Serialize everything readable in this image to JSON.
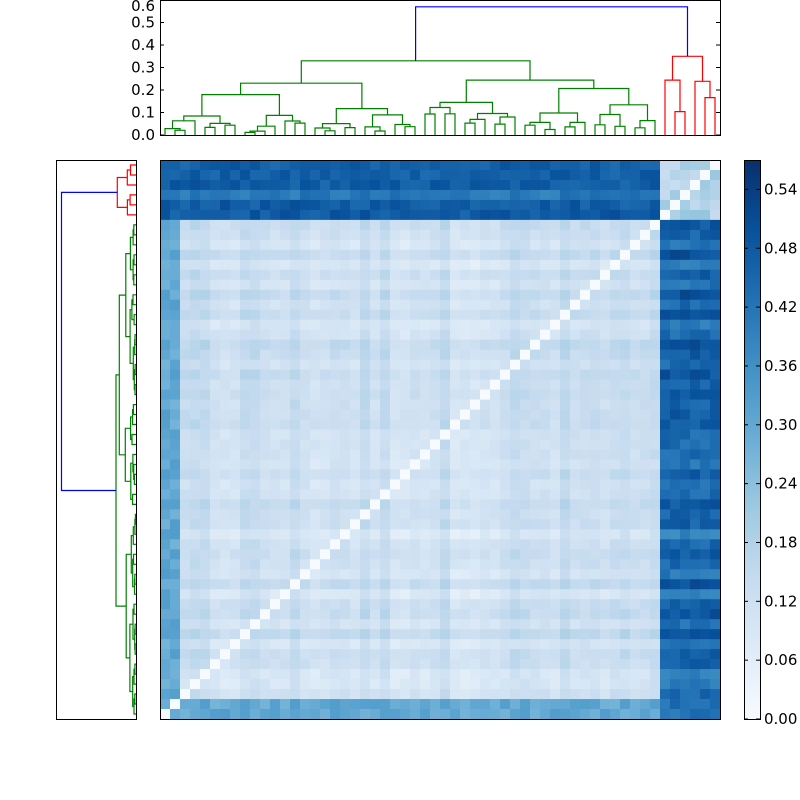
{
  "chart_data": [
    {
      "type": "dendrogram",
      "orientation": "top",
      "n_leaves": 56,
      "ylim": [
        0,
        0.6
      ],
      "yticks": [
        "0.0",
        "0.1",
        "0.2",
        "0.3",
        "0.4",
        "0.5",
        "0.6"
      ],
      "clusters": [
        {
          "color": "#008000",
          "leaves": 50,
          "height": 0.33
        },
        {
          "color": "#ff0000",
          "leaves": 6,
          "height": 0.35
        }
      ],
      "root": {
        "color": "#0000ff",
        "height": 0.57
      }
    },
    {
      "type": "dendrogram",
      "orientation": "left",
      "n_leaves": 56,
      "clusters": [
        {
          "color": "#ff0000",
          "leaves": 6
        },
        {
          "color": "#008000",
          "leaves": 50
        }
      ],
      "root": {
        "color": "#0000ff"
      }
    },
    {
      "type": "heatmap",
      "n_rows": 56,
      "n_cols": 56,
      "colormap": "Blues",
      "vmin": 0.0,
      "vmax": 0.57,
      "diagonal": 0.0,
      "blocks": {
        "red_cluster_size": 6,
        "green_cluster_size": 50
      },
      "typical_values": {
        "green_green": 0.12,
        "green_red": 0.45,
        "red_red": 0.18,
        "outlier_rows_green": 0.3
      }
    },
    {
      "type": "colorbar",
      "vmin": 0.0,
      "vmax": 0.57,
      "colormap": "Blues",
      "ticks": [
        "0.00",
        "0.06",
        "0.12",
        "0.18",
        "0.24",
        "0.30",
        "0.36",
        "0.42",
        "0.48",
        "0.54"
      ]
    }
  ]
}
